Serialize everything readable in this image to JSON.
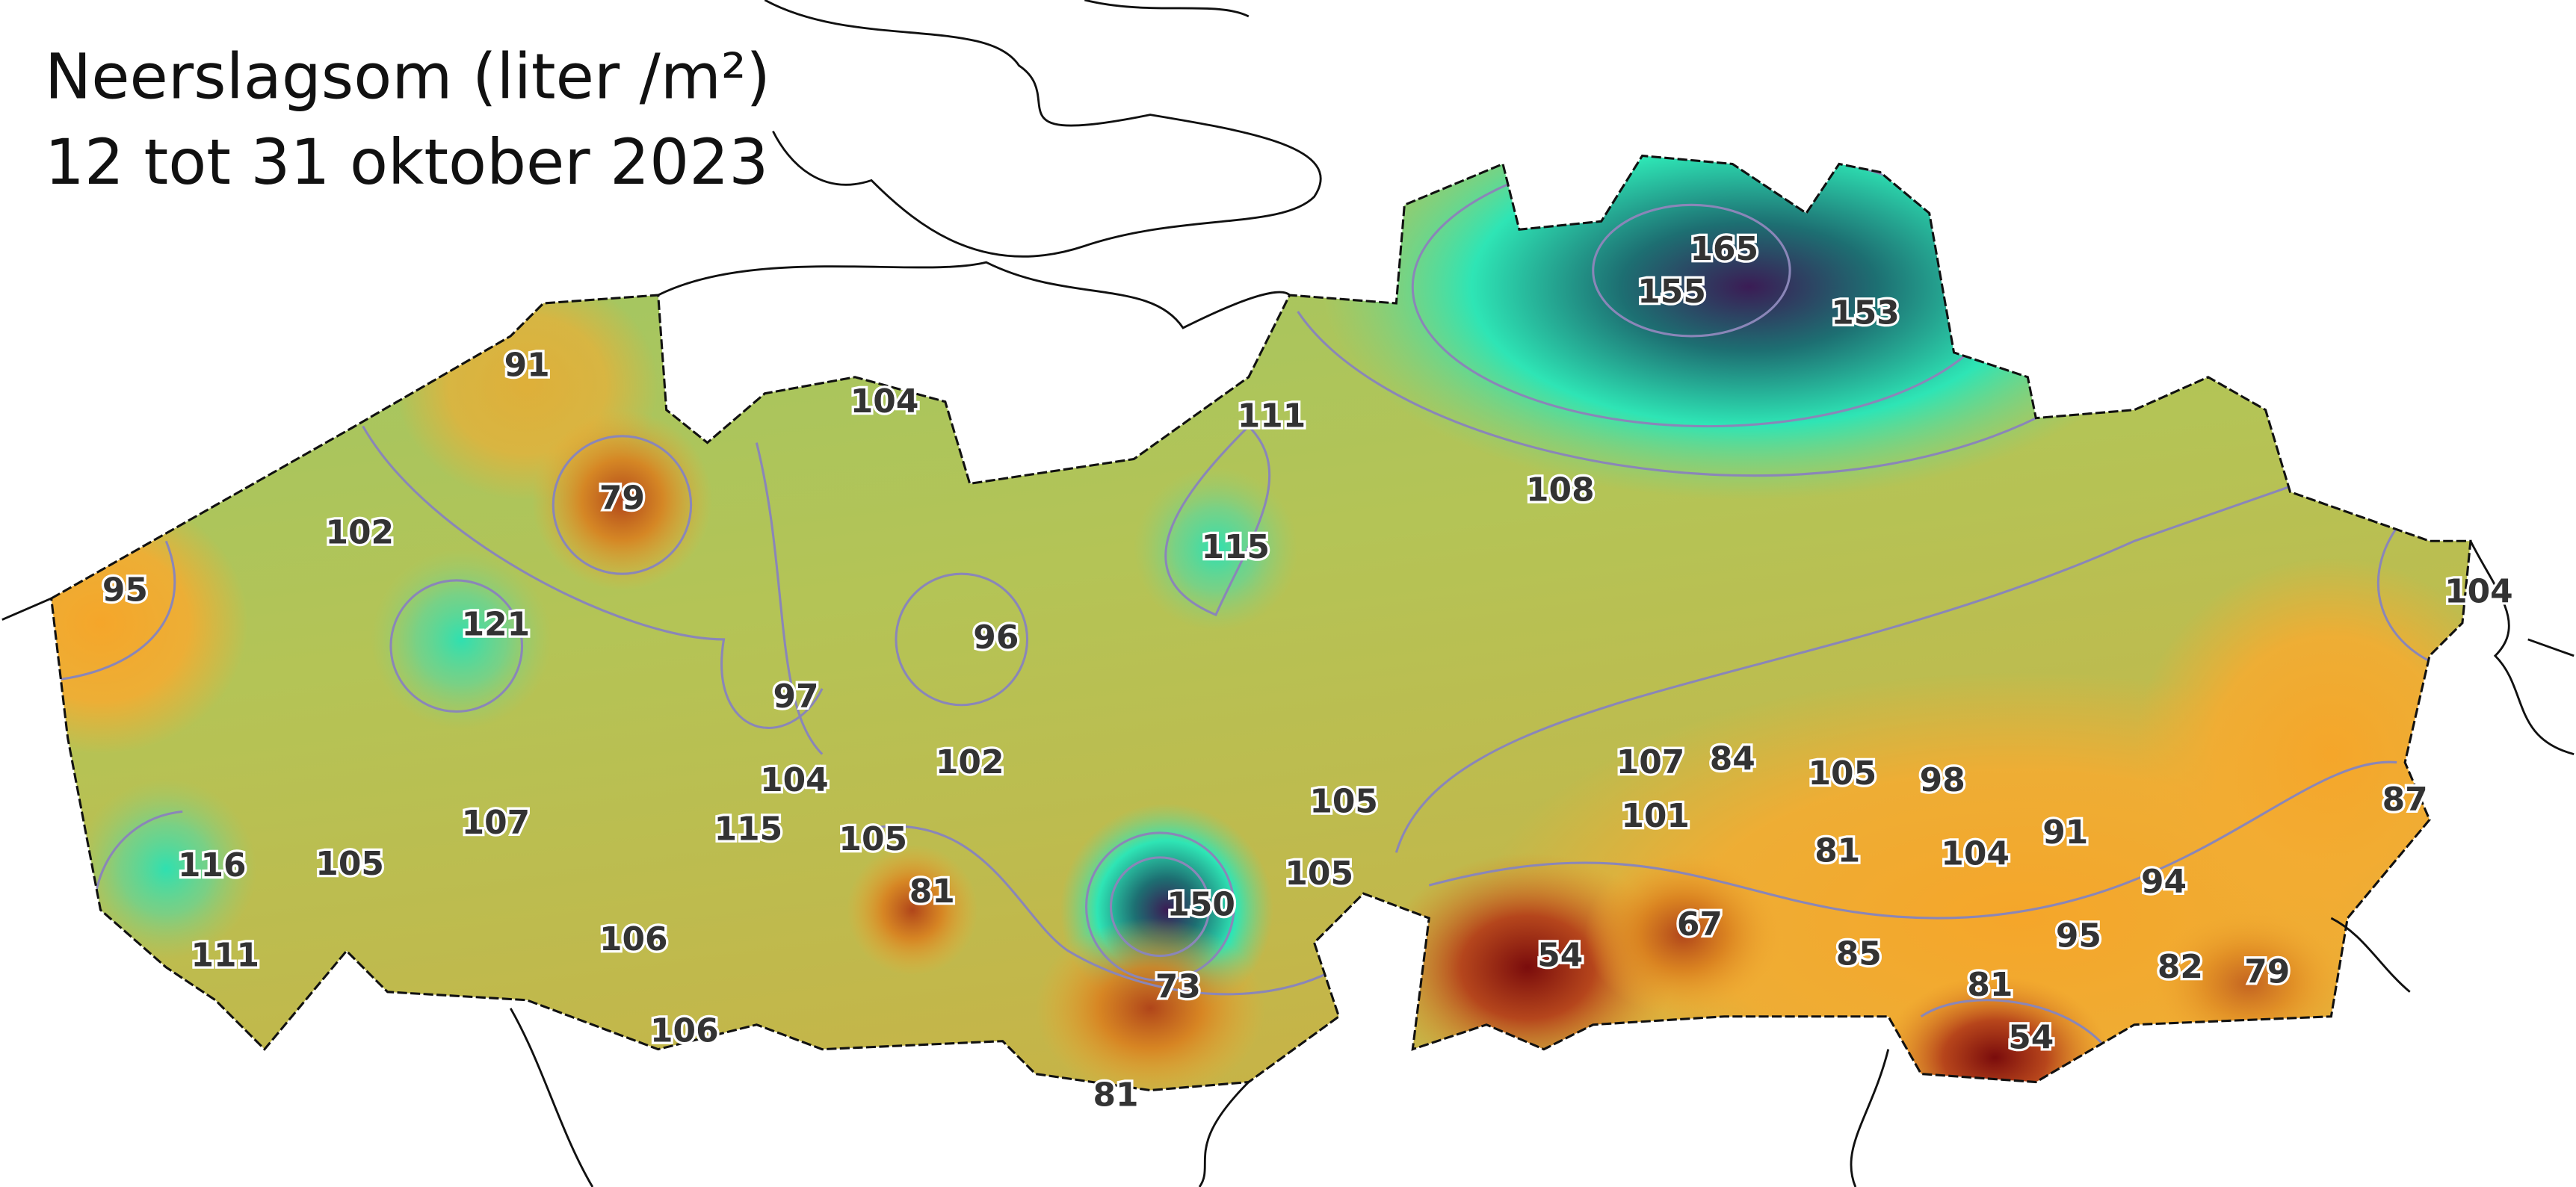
{
  "title": {
    "line1": "Neerslagsom (liter /m²)",
    "line2": "12 tot 31 oktober 2023"
  },
  "stations": [
    91,
    104,
    111,
    165,
    155,
    153,
    108,
    79,
    102,
    115,
    95,
    121,
    96,
    104,
    97,
    107,
    84,
    105,
    98,
    104,
    102,
    105,
    87,
    101,
    107,
    115,
    105,
    91,
    81,
    104,
    116,
    105,
    105,
    94,
    81,
    150,
    67,
    54,
    95,
    85,
    111,
    106,
    82,
    79,
    81,
    73,
    54,
    106,
    81
  ]
}
